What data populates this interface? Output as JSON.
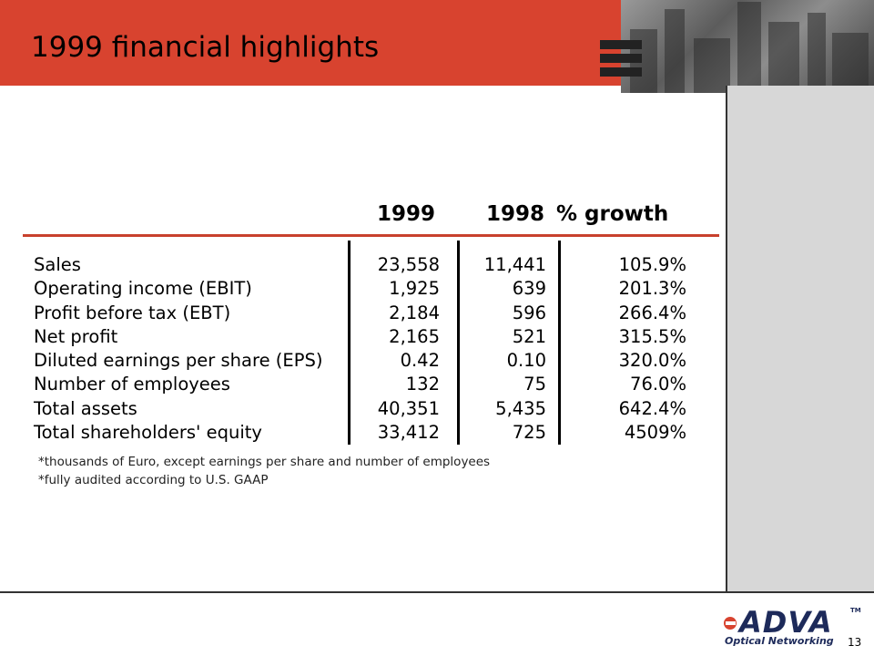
{
  "slide": {
    "title": "1999 financial highlights",
    "page_number": "13"
  },
  "table": {
    "headers": [
      "1999",
      "1998",
      "% growth"
    ],
    "rows": [
      {
        "label": "Sales",
        "v1999": "23,558",
        "v1998": "11,441",
        "growth": "105.9%"
      },
      {
        "label": "Operating income (EBIT)",
        "v1999": "1,925",
        "v1998": "639",
        "growth": "201.3%"
      },
      {
        "label": "Profit before tax (EBT)",
        "v1999": "2,184",
        "v1998": "596",
        "growth": "266.4%"
      },
      {
        "label": "Net profit",
        "v1999": "2,165",
        "v1998": "521",
        "growth": "315.5%"
      },
      {
        "label": "Diluted earnings per share (EPS)",
        "v1999": "0.42",
        "v1998": "0.10",
        "growth": "320.0%"
      },
      {
        "label": "Number of employees",
        "v1999": "132",
        "v1998": "75",
        "growth": "76.0%"
      },
      {
        "label": "Total assets",
        "v1999": "40,351",
        "v1998": "5,435",
        "growth": "642.4%"
      },
      {
        "label": "Total shareholders' equity",
        "v1999": "33,412",
        "v1998": "725",
        "growth": "4509%"
      }
    ]
  },
  "notes": [
    "*thousands of Euro, except earnings per share and number of employees",
    "*fully audited according to U.S. GAAP"
  ],
  "logo": {
    "name": "ADVA",
    "trademark": "TM",
    "tagline": "Optical Networking"
  },
  "colors": {
    "accent_red": "#d8432f",
    "logo_navy": "#1d2a5a",
    "side_panel_grey": "#d7d7d7"
  }
}
